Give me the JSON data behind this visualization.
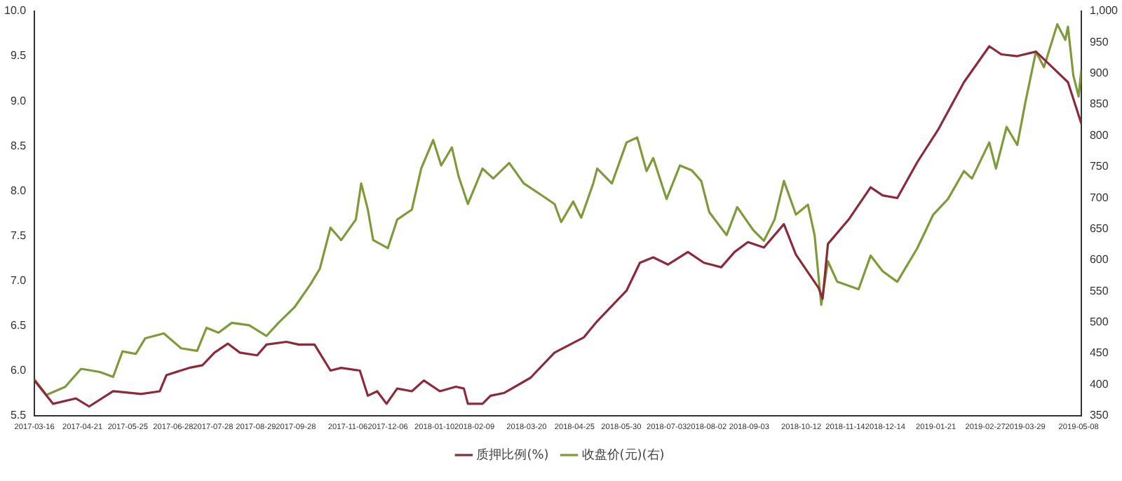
{
  "chart_data": {
    "type": "line",
    "legend": "bottom",
    "marker": "none",
    "xlim": [
      "2017-03-16",
      "2019-05-10"
    ],
    "xticks": [
      "2017-03-16",
      "2017-04-21",
      "2017-05-25",
      "2017-06-28",
      "2017-07-28",
      "2017-08-29",
      "2017-09-28",
      "2017-11-06",
      "2017-12-06",
      "2018-01-10",
      "2018-02-09",
      "2018-03-20",
      "2018-04-25",
      "2018-05-30",
      "2018-07-03",
      "2018-08-02",
      "2018-09-03",
      "2018-10-12",
      "2018-11-14",
      "2018-12-14",
      "2019-01-21",
      "2019-02-27",
      "2019-03-29",
      "2019-05-08"
    ],
    "ylim": [
      5.5,
      10
    ],
    "yticks": [
      {
        "value": 5.5,
        "label": "5.5"
      },
      {
        "value": 6,
        "label": "6.0"
      },
      {
        "value": 6.5,
        "label": "6.5"
      },
      {
        "value": 7,
        "label": "7.0"
      },
      {
        "value": 7.5,
        "label": "7.5"
      },
      {
        "value": 8,
        "label": "8.0"
      },
      {
        "value": 8.5,
        "label": "8.5"
      },
      {
        "value": 9,
        "label": "9.0"
      },
      {
        "value": 9.5,
        "label": "9.5"
      },
      {
        "value": 10,
        "label": "10.0"
      }
    ],
    "y2lim": [
      350,
      1000
    ],
    "y2ticks": [
      350,
      400,
      450,
      500,
      550,
      600,
      650,
      700,
      750,
      800,
      850,
      900,
      950,
      {
        "value": 1000,
        "label": "1,000"
      }
    ],
    "series": [
      {
        "name": "质押比例(%)",
        "color": "#8b2a3a",
        "x": [
          "2017-03-16",
          "2017-03-30",
          "2017-04-16",
          "2017-04-26",
          "2017-05-14",
          "2017-06-04",
          "2017-06-18",
          "2017-06-23",
          "2017-07-10",
          "2017-07-20",
          "2017-07-29",
          "2017-08-08",
          "2017-08-17",
          "2017-08-30",
          "2017-09-06",
          "2017-09-21",
          "2017-09-30",
          "2017-10-12",
          "2017-10-24",
          "2017-11-01",
          "2017-11-15",
          "2017-11-21",
          "2017-11-28",
          "2017-12-05",
          "2017-12-13",
          "2017-12-24",
          "2018-01-02",
          "2018-01-14",
          "2018-01-26",
          "2018-02-01",
          "2018-02-04",
          "2018-02-15",
          "2018-02-21",
          "2018-03-03",
          "2018-03-23",
          "2018-04-10",
          "2018-05-02",
          "2018-05-12",
          "2018-06-03",
          "2018-06-13",
          "2018-06-23",
          "2018-07-04",
          "2018-07-19",
          "2018-07-31",
          "2018-08-13",
          "2018-08-23",
          "2018-09-02",
          "2018-09-14",
          "2018-09-29",
          "2018-10-08",
          "2018-10-25",
          "2018-10-28",
          "2018-11-01",
          "2018-11-17",
          "2018-12-03",
          "2018-12-12",
          "2018-12-23",
          "2019-01-07",
          "2019-01-23",
          "2019-02-11",
          "2019-03-02",
          "2019-03-11",
          "2019-03-23",
          "2019-04-06",
          "2019-04-18",
          "2019-04-30",
          "2019-05-10"
        ],
        "values": [
          5.89,
          5.63,
          5.69,
          5.6,
          5.77,
          5.74,
          5.77,
          5.95,
          6.03,
          6.06,
          6.2,
          6.3,
          6.2,
          6.17,
          6.29,
          6.32,
          6.29,
          6.29,
          6.0,
          6.03,
          6.0,
          5.72,
          5.77,
          5.63,
          5.8,
          5.77,
          5.89,
          5.77,
          5.82,
          5.8,
          5.63,
          5.63,
          5.72,
          5.75,
          5.92,
          6.2,
          6.37,
          6.55,
          6.89,
          7.2,
          7.26,
          7.18,
          7.32,
          7.2,
          7.15,
          7.32,
          7.43,
          7.37,
          7.63,
          7.29,
          6.92,
          6.8,
          7.41,
          7.69,
          8.04,
          7.95,
          7.92,
          8.32,
          8.69,
          9.21,
          9.61,
          9.52,
          9.5,
          9.55,
          9.38,
          9.21,
          8.75
        ]
      },
      {
        "name": "收盘价(元)(右)",
        "color": "#7f9a3a",
        "axis": "y2",
        "x": [
          "2017-03-16",
          "2017-03-25",
          "2017-04-08",
          "2017-04-20",
          "2017-05-04",
          "2017-05-14",
          "2017-05-21",
          "2017-05-31",
          "2017-06-07",
          "2017-06-21",
          "2017-07-04",
          "2017-07-16",
          "2017-07-23",
          "2017-08-01",
          "2017-08-11",
          "2017-08-24",
          "2017-09-06",
          "2017-09-15",
          "2017-09-27",
          "2017-10-09",
          "2017-10-16",
          "2017-10-24",
          "2017-11-01",
          "2017-11-12",
          "2017-11-16",
          "2017-11-21",
          "2017-11-25",
          "2017-12-06",
          "2017-12-13",
          "2017-12-24",
          "2017-12-31",
          "2018-01-09",
          "2018-01-15",
          "2018-01-23",
          "2018-01-28",
          "2018-02-04",
          "2018-02-15",
          "2018-02-23",
          "2018-03-07",
          "2018-03-18",
          "2018-03-30",
          "2018-04-10",
          "2018-04-15",
          "2018-04-24",
          "2018-04-30",
          "2018-05-09",
          "2018-05-12",
          "2018-05-23",
          "2018-06-03",
          "2018-06-11",
          "2018-06-18",
          "2018-06-23",
          "2018-07-03",
          "2018-07-13",
          "2018-07-22",
          "2018-07-29",
          "2018-08-04",
          "2018-08-17",
          "2018-08-25",
          "2018-09-06",
          "2018-09-14",
          "2018-09-22",
          "2018-09-29",
          "2018-10-08",
          "2018-10-17",
          "2018-10-22",
          "2018-10-27",
          "2018-11-01",
          "2018-11-08",
          "2018-11-24",
          "2018-12-03",
          "2018-12-12",
          "2018-12-23",
          "2019-01-07",
          "2019-01-19",
          "2019-01-30",
          "2019-02-11",
          "2019-02-17",
          "2019-03-02",
          "2019-03-07",
          "2019-03-15",
          "2019-03-23",
          "2019-03-29",
          "2019-04-06",
          "2019-04-12",
          "2019-04-22",
          "2019-04-28",
          "2019-04-30",
          "2019-05-04",
          "2019-05-08",
          "2019-05-10"
        ],
        "values": [
          408,
          383,
          396,
          425,
          420,
          412,
          453,
          449,
          474,
          482,
          458,
          454,
          491,
          483,
          499,
          495,
          478,
          499,
          524,
          561,
          586,
          652,
          632,
          665,
          723,
          681,
          632,
          619,
          665,
          681,
          747,
          793,
          752,
          781,
          735,
          690,
          747,
          731,
          756,
          723,
          706,
          690,
          661,
          694,
          668,
          723,
          747,
          723,
          789,
          797,
          743,
          764,
          698,
          752,
          744,
          727,
          677,
          640,
          685,
          648,
          631,
          665,
          727,
          673,
          689,
          640,
          528,
          598,
          565,
          553,
          607,
          582,
          565,
          619,
          673,
          698,
          743,
          731,
          789,
          747,
          814,
          785,
          853,
          935,
          910,
          979,
          954,
          975,
          897,
          863,
          905
        ]
      }
    ]
  }
}
